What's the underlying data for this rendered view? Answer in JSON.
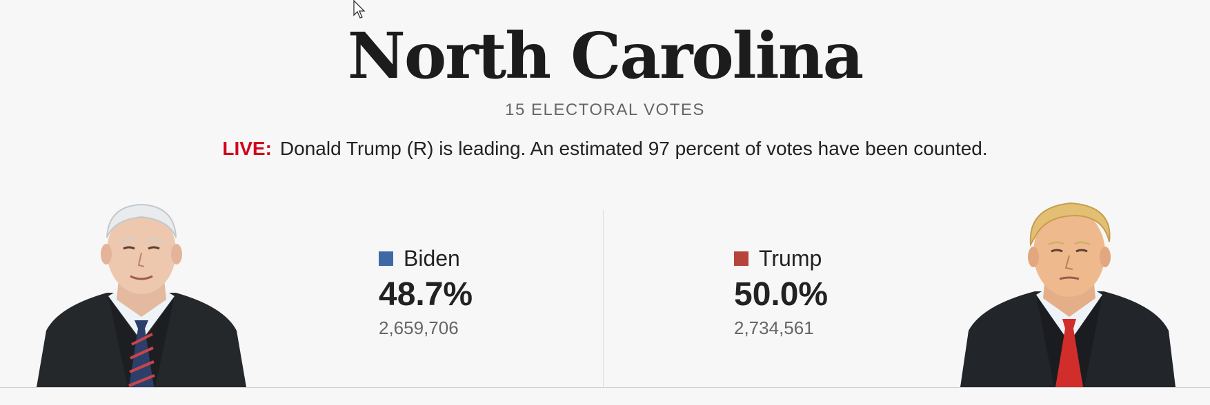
{
  "state": {
    "title": "North Carolina",
    "electoral_votes": "15 ELECTORAL VOTES"
  },
  "status": {
    "live_label": "LIVE:",
    "message": "Donald Trump (R) is leading. An estimated 97 percent of votes have been counted."
  },
  "candidates": [
    {
      "name": "Biden",
      "percent": "48.7%",
      "votes": "2,659,706",
      "color": "#3d6aa6",
      "portrait_icon": "biden-portrait-icon"
    },
    {
      "name": "Trump",
      "percent": "50.0%",
      "votes": "2,734,561",
      "color": "#b6443a",
      "portrait_icon": "trump-portrait-icon"
    }
  ],
  "colors": {
    "live_accent": "#d0021b",
    "background": "#f7f7f7"
  },
  "icons": {
    "cursor": "mouse-cursor-icon"
  }
}
